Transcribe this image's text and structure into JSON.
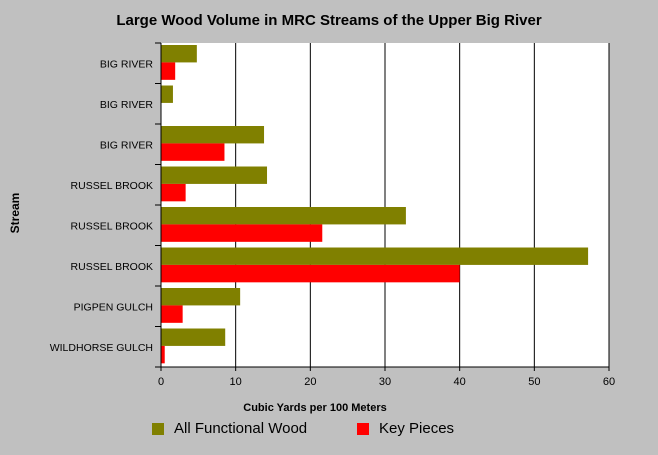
{
  "chart_data": {
    "type": "bar",
    "orientation": "horizontal",
    "title": "Large Wood Volume in MRC Streams of the Upper Big River",
    "xlabel": "Cubic Yards per 100 Meters",
    "ylabel": "Stream",
    "categories": [
      "BIG RIVER",
      "BIG RIVER",
      "BIG RIVER",
      "RUSSEL BROOK",
      "RUSSEL BROOK",
      "RUSSEL BROOK",
      "PIGPEN GULCH",
      "WILDHORSE GULCH"
    ],
    "series": [
      {
        "name": "All Functional Wood",
        "color": "#808000",
        "values": [
          4.8,
          1.6,
          13.8,
          14.2,
          32.8,
          57.2,
          10.6,
          8.6
        ]
      },
      {
        "name": "Key Pieces",
        "color": "#ff0000",
        "values": [
          1.9,
          null,
          8.5,
          3.3,
          21.6,
          40.0,
          2.9,
          0.5
        ]
      }
    ],
    "xlim": [
      0,
      60
    ],
    "xticks": [
      0,
      10,
      20,
      30,
      40,
      50,
      60
    ],
    "grid": true,
    "legend": "bottom"
  },
  "colors": {
    "background": "#c0c0c0",
    "plot_background": "#ffffff",
    "grid": "#000000"
  }
}
